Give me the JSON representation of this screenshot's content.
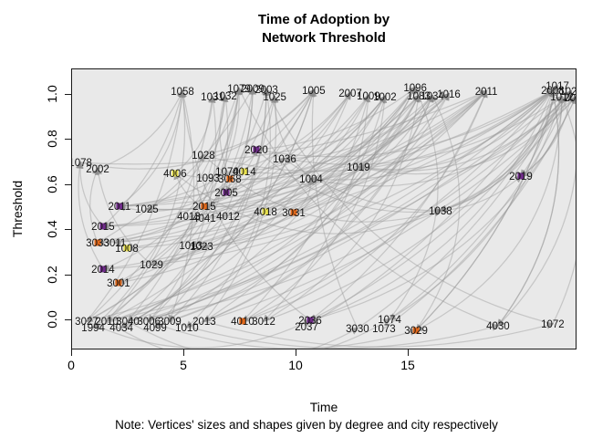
{
  "title": {
    "line1": "Time of Adoption by",
    "line2": "Network Threshold"
  },
  "note": "Note: Vertices' sizes and shapes given by degree and city respectively",
  "axes": {
    "x": {
      "label": "Time",
      "ticks": [
        0,
        5,
        10,
        15
      ]
    },
    "y": {
      "label": "Threshold",
      "ticks": [
        "0.0",
        "0.2",
        "0.4",
        "0.6",
        "0.8",
        "1.0"
      ]
    }
  },
  "chart_data": {
    "type": "scatter",
    "title": "Time of Adoption by Network Threshold",
    "xlabel": "Time",
    "ylabel": "Threshold",
    "xlim": [
      0,
      22.5
    ],
    "ylim": [
      -0.05,
      1.05
    ],
    "grid": false,
    "cal": {
      "x0": 0,
      "xs": 24.6,
      "yb": 275,
      "ys": 247
    },
    "colors": {
      "edge": "#969696",
      "arrow": "#8a8a8a",
      "label": "#141414",
      "panel": "#e9e9e9",
      "y": "#e8e04f",
      "o": "#e2691b",
      "p": "#702c8a"
    },
    "nodes": [
      {
        "l": "1058",
        "t": 4.96,
        "h": 1.012
      },
      {
        "l": "1031",
        "t": 6.3,
        "h": 0.988
      },
      {
        "l": "1032",
        "t": 6.87,
        "h": 0.992
      },
      {
        "l": "1079",
        "t": 7.48,
        "h": 1.024
      },
      {
        "l": "2009",
        "t": 8.09,
        "h": 1.024
      },
      {
        "l": "2003",
        "t": 8.7,
        "h": 1.02
      },
      {
        "l": "1025",
        "t": 9.07,
        "h": 0.988
      },
      {
        "l": "1005",
        "t": 10.81,
        "h": 1.016
      },
      {
        "l": "2007",
        "t": 12.44,
        "h": 1.004
      },
      {
        "l": "1009",
        "t": 13.25,
        "h": 0.992
      },
      {
        "l": "1002",
        "t": 13.98,
        "h": 0.988
      },
      {
        "l": "1096",
        "t": 15.33,
        "h": 1.028
      },
      {
        "l": "1083",
        "t": 15.49,
        "h": 0.992
      },
      {
        "l": "1034",
        "t": 16.1,
        "h": 0.992
      },
      {
        "l": "1016",
        "t": 16.83,
        "h": 1.0
      },
      {
        "l": "2011",
        "t": 18.5,
        "h": 1.012
      },
      {
        "l": "2008",
        "t": 21.46,
        "h": 1.016
      },
      {
        "l": "1012",
        "t": 21.87,
        "h": 0.988
      },
      {
        "l": "1021",
        "t": 22.28,
        "h": 1.012
      },
      {
        "l": "2004",
        "t": 22.48,
        "h": 0.984
      },
      {
        "l": "1017",
        "t": 21.67,
        "h": 1.036
      },
      {
        "l": "1078",
        "t": 0.41,
        "h": 0.696
      },
      {
        "l": "2002",
        "t": 1.18,
        "h": 0.668
      },
      {
        "l": "1028",
        "t": 5.89,
        "h": 0.729
      },
      {
        "l": "2020",
        "t": 8.25,
        "h": 0.753,
        "c": "p"
      },
      {
        "l": "1036",
        "t": 9.51,
        "h": 0.713
      },
      {
        "l": "4006",
        "t": 4.63,
        "h": 0.648,
        "c": "y"
      },
      {
        "l": "1093",
        "t": 6.1,
        "h": 0.628
      },
      {
        "l": "1070",
        "t": 6.95,
        "h": 0.656
      },
      {
        "l": "3068",
        "t": 7.07,
        "h": 0.623,
        "c": "o"
      },
      {
        "l": "4014",
        "t": 7.72,
        "h": 0.656,
        "c": "y"
      },
      {
        "l": "1004",
        "t": 10.69,
        "h": 0.623
      },
      {
        "l": "1019",
        "t": 12.8,
        "h": 0.676
      },
      {
        "l": "2019",
        "t": 20.04,
        "h": 0.636,
        "c": "p"
      },
      {
        "l": "2005",
        "t": 6.91,
        "h": 0.563,
        "c": "p"
      },
      {
        "l": "2011",
        "t": 2.15,
        "h": 0.502,
        "c": "p"
      },
      {
        "l": "1025",
        "t": 3.37,
        "h": 0.49
      },
      {
        "l": "2015",
        "t": 5.93,
        "h": 0.502,
        "c": "o"
      },
      {
        "l": "4013",
        "t": 5.24,
        "h": 0.457
      },
      {
        "l": "4041",
        "t": 5.93,
        "h": 0.449
      },
      {
        "l": "4012",
        "t": 6.99,
        "h": 0.457
      },
      {
        "l": "4018",
        "t": 8.66,
        "h": 0.478,
        "c": "y"
      },
      {
        "l": "3031",
        "t": 9.92,
        "h": 0.474,
        "c": "o"
      },
      {
        "l": "2015",
        "t": 1.42,
        "h": 0.413,
        "c": "p"
      },
      {
        "l": "3033",
        "t": 1.18,
        "h": 0.34,
        "c": "o"
      },
      {
        "l": "3011",
        "t": 1.95,
        "h": 0.34
      },
      {
        "l": "1008",
        "t": 2.48,
        "h": 0.316,
        "c": "y"
      },
      {
        "l": "1013",
        "t": 5.33,
        "h": 0.328
      },
      {
        "l": "1023",
        "t": 5.81,
        "h": 0.324
      },
      {
        "l": "1038",
        "t": 16.46,
        "h": 0.482
      },
      {
        "l": "2014",
        "t": 1.42,
        "h": 0.223,
        "c": "p"
      },
      {
        "l": "1029",
        "t": 3.58,
        "h": 0.243
      },
      {
        "l": "3001",
        "t": 2.11,
        "h": 0.162,
        "c": "o"
      },
      {
        "l": "3027",
        "t": 0.69,
        "h": -0.008
      },
      {
        "l": "2010",
        "t": 1.59,
        "h": -0.008
      },
      {
        "l": "3040",
        "t": 2.52,
        "h": -0.008
      },
      {
        "l": "3006",
        "t": 3.46,
        "h": -0.008
      },
      {
        "l": "3009",
        "t": 4.39,
        "h": -0.008
      },
      {
        "l": "2013",
        "t": 5.93,
        "h": -0.008
      },
      {
        "l": "4010",
        "t": 7.64,
        "h": -0.008,
        "c": "o"
      },
      {
        "l": "3012",
        "t": 8.58,
        "h": -0.008
      },
      {
        "l": "1994",
        "t": 0.98,
        "h": -0.036
      },
      {
        "l": "4034",
        "t": 2.24,
        "h": -0.036
      },
      {
        "l": "4099",
        "t": 3.74,
        "h": -0.036
      },
      {
        "l": "1010",
        "t": 5.16,
        "h": -0.036
      },
      {
        "l": "2036",
        "t": 10.65,
        "h": -0.004,
        "c": "p"
      },
      {
        "l": "2037",
        "t": 10.49,
        "h": -0.032
      },
      {
        "l": "3030",
        "t": 12.76,
        "h": -0.04
      },
      {
        "l": "1074",
        "t": 14.19,
        "h": 0.0
      },
      {
        "l": "1073",
        "t": 13.94,
        "h": -0.04
      },
      {
        "l": "3029",
        "t": 15.37,
        "h": -0.049,
        "c": "o"
      },
      {
        "l": "4030",
        "t": 19.02,
        "h": -0.028
      },
      {
        "l": "1072",
        "t": 21.46,
        "h": -0.02
      }
    ],
    "edges": [
      [
        53,
        0
      ],
      [
        53,
        3
      ],
      [
        53,
        7
      ],
      [
        54,
        1
      ],
      [
        54,
        8
      ],
      [
        55,
        2
      ],
      [
        55,
        11
      ],
      [
        56,
        4
      ],
      [
        56,
        14
      ],
      [
        57,
        5
      ],
      [
        57,
        10
      ],
      [
        58,
        6
      ],
      [
        58,
        13
      ],
      [
        59,
        9
      ],
      [
        59,
        15
      ],
      [
        60,
        12
      ],
      [
        61,
        0
      ],
      [
        61,
        15
      ],
      [
        62,
        7
      ],
      [
        62,
        19
      ],
      [
        63,
        10
      ],
      [
        64,
        13
      ],
      [
        61,
        3
      ],
      [
        62,
        5
      ],
      [
        53,
        15
      ],
      [
        54,
        16
      ],
      [
        55,
        18
      ],
      [
        56,
        16
      ],
      [
        57,
        17
      ],
      [
        58,
        19
      ],
      [
        59,
        16
      ],
      [
        60,
        18
      ],
      [
        35,
        0
      ],
      [
        35,
        7
      ],
      [
        36,
        2
      ],
      [
        37,
        8
      ],
      [
        38,
        3
      ],
      [
        40,
        10
      ],
      [
        41,
        11
      ],
      [
        42,
        13
      ],
      [
        43,
        0
      ],
      [
        44,
        4
      ],
      [
        45,
        7
      ],
      [
        46,
        9
      ],
      [
        47,
        11
      ],
      [
        48,
        14
      ],
      [
        50,
        3
      ],
      [
        51,
        5
      ],
      [
        52,
        6
      ],
      [
        43,
        15
      ],
      [
        44,
        16
      ],
      [
        50,
        16
      ],
      [
        51,
        12
      ],
      [
        52,
        11
      ],
      [
        35,
        16
      ],
      [
        36,
        9
      ],
      [
        37,
        14
      ],
      [
        39,
        12
      ],
      [
        39,
        16
      ],
      [
        21,
        15
      ],
      [
        22,
        0
      ],
      [
        23,
        7
      ],
      [
        24,
        11
      ],
      [
        25,
        13
      ],
      [
        26,
        1
      ],
      [
        27,
        8
      ],
      [
        28,
        10
      ],
      [
        29,
        14
      ],
      [
        30,
        15
      ],
      [
        31,
        16
      ],
      [
        32,
        18
      ],
      [
        34,
        4
      ],
      [
        21,
        7
      ],
      [
        23,
        16
      ],
      [
        26,
        12
      ],
      [
        28,
        2
      ],
      [
        31,
        6
      ],
      [
        32,
        12
      ],
      [
        34,
        10
      ],
      [
        16,
        33
      ],
      [
        17,
        33
      ],
      [
        18,
        49
      ],
      [
        16,
        49
      ],
      [
        19,
        65
      ],
      [
        20,
        70
      ],
      [
        16,
        71
      ],
      [
        17,
        68
      ],
      [
        18,
        65
      ],
      [
        19,
        71
      ],
      [
        16,
        65
      ],
      [
        17,
        70
      ],
      [
        16,
        24
      ],
      [
        17,
        25
      ],
      [
        18,
        31
      ],
      [
        19,
        32
      ],
      [
        20,
        49
      ],
      [
        16,
        32
      ],
      [
        17,
        49
      ],
      [
        18,
        33
      ],
      [
        15,
        37
      ],
      [
        15,
        43
      ],
      [
        15,
        50
      ],
      [
        14,
        44
      ],
      [
        13,
        51
      ],
      [
        12,
        52
      ],
      [
        11,
        58
      ],
      [
        10,
        59
      ],
      [
        9,
        60
      ],
      [
        8,
        61
      ],
      [
        7,
        62
      ],
      [
        6,
        63
      ],
      [
        5,
        64
      ],
      [
        4,
        53
      ],
      [
        3,
        54
      ],
      [
        2,
        55
      ],
      [
        1,
        56
      ],
      [
        0,
        57
      ],
      [
        15,
        35
      ],
      [
        14,
        36
      ],
      [
        13,
        47
      ],
      [
        12,
        48
      ],
      [
        11,
        46
      ],
      [
        10,
        45
      ],
      [
        9,
        44
      ],
      [
        8,
        43
      ],
      [
        34,
        24
      ],
      [
        35,
        25
      ],
      [
        37,
        23
      ],
      [
        40,
        26
      ],
      [
        42,
        31
      ],
      [
        49,
        33
      ],
      [
        28,
        34
      ],
      [
        29,
        35
      ],
      [
        43,
        21
      ],
      [
        44,
        22
      ],
      [
        50,
        21
      ],
      [
        51,
        22
      ],
      [
        24,
        49
      ],
      [
        25,
        49
      ],
      [
        23,
        49
      ],
      [
        26,
        49
      ],
      [
        53,
        65
      ],
      [
        54,
        67
      ],
      [
        55,
        68
      ],
      [
        56,
        70
      ],
      [
        57,
        71
      ],
      [
        58,
        72
      ],
      [
        65,
        15
      ],
      [
        66,
        16
      ],
      [
        67,
        17
      ],
      [
        68,
        18
      ],
      [
        69,
        19
      ],
      [
        70,
        20
      ],
      [
        71,
        16
      ],
      [
        72,
        17
      ],
      [
        65,
        0
      ],
      [
        67,
        7
      ],
      [
        68,
        11
      ],
      [
        70,
        13
      ],
      [
        71,
        3
      ],
      [
        72,
        5
      ]
    ]
  }
}
